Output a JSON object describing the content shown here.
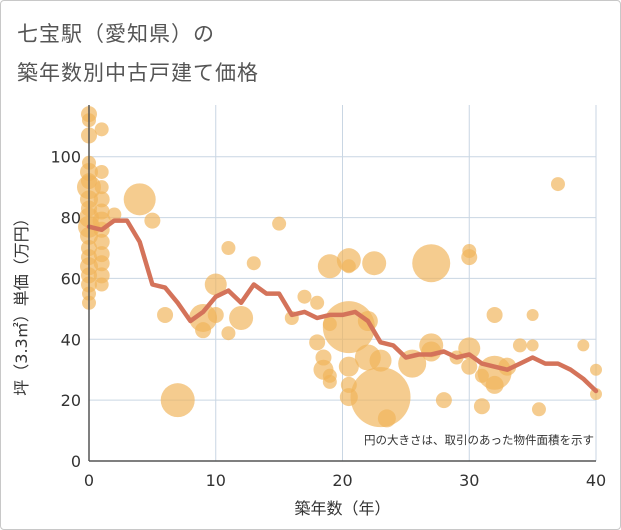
{
  "title_lines": [
    "七宝駅（愛知県）の",
    "築年数別中古戸建て価格"
  ],
  "note": "円の大きさは、取引のあった物件面積を示す",
  "colors": {
    "bubble": "#f0b45a",
    "line": "#d4735a",
    "grid": "#c9d6e3",
    "plot_bg": "#ffffff"
  },
  "chart_data": {
    "type": "scatter",
    "xlabel": "築年数（年）",
    "ylabel": "坪（3.3㎡）単価（万円）",
    "xlim": [
      0,
      40
    ],
    "ylim": [
      0,
      117
    ],
    "x_ticks": [
      0,
      10,
      20,
      30,
      40
    ],
    "y_ticks": [
      0,
      20,
      40,
      60,
      80,
      100
    ],
    "grid": true,
    "series": [
      {
        "kind": "bubbles",
        "points": [
          {
            "x": 0,
            "y": 114,
            "s": 8
          },
          {
            "x": 0,
            "y": 112,
            "s": 7
          },
          {
            "x": 0,
            "y": 107,
            "s": 8
          },
          {
            "x": 0,
            "y": 98,
            "s": 7
          },
          {
            "x": 0,
            "y": 95,
            "s": 9
          },
          {
            "x": 0,
            "y": 92,
            "s": 8
          },
          {
            "x": 0,
            "y": 90,
            "s": 12
          },
          {
            "x": 0,
            "y": 86,
            "s": 9
          },
          {
            "x": 0,
            "y": 83,
            "s": 8
          },
          {
            "x": 0,
            "y": 80,
            "s": 10
          },
          {
            "x": 0,
            "y": 77,
            "s": 11
          },
          {
            "x": 0,
            "y": 74,
            "s": 9
          },
          {
            "x": 0,
            "y": 70,
            "s": 8
          },
          {
            "x": 0,
            "y": 67,
            "s": 8
          },
          {
            "x": 0,
            "y": 64,
            "s": 9
          },
          {
            "x": 0,
            "y": 61,
            "s": 8
          },
          {
            "x": 0,
            "y": 58,
            "s": 8
          },
          {
            "x": 0,
            "y": 55,
            "s": 7
          },
          {
            "x": 0,
            "y": 52,
            "s": 7
          },
          {
            "x": 1,
            "y": 109,
            "s": 7
          },
          {
            "x": 1,
            "y": 95,
            "s": 7
          },
          {
            "x": 1,
            "y": 90,
            "s": 7
          },
          {
            "x": 1,
            "y": 86,
            "s": 8
          },
          {
            "x": 1,
            "y": 82,
            "s": 8
          },
          {
            "x": 1,
            "y": 79,
            "s": 9
          },
          {
            "x": 1,
            "y": 76,
            "s": 8
          },
          {
            "x": 1,
            "y": 72,
            "s": 8
          },
          {
            "x": 1,
            "y": 68,
            "s": 8
          },
          {
            "x": 1,
            "y": 65,
            "s": 8
          },
          {
            "x": 1,
            "y": 61,
            "s": 8
          },
          {
            "x": 1,
            "y": 58,
            "s": 7
          },
          {
            "x": 2,
            "y": 81,
            "s": 7
          },
          {
            "x": 4,
            "y": 86,
            "s": 16
          },
          {
            "x": 5,
            "y": 79,
            "s": 8
          },
          {
            "x": 6,
            "y": 48,
            "s": 8
          },
          {
            "x": 7,
            "y": 20,
            "s": 17
          },
          {
            "x": 9,
            "y": 47,
            "s": 14
          },
          {
            "x": 9,
            "y": 43,
            "s": 8
          },
          {
            "x": 10,
            "y": 58,
            "s": 11
          },
          {
            "x": 10,
            "y": 48,
            "s": 8
          },
          {
            "x": 11,
            "y": 70,
            "s": 7
          },
          {
            "x": 11,
            "y": 42,
            "s": 7
          },
          {
            "x": 12,
            "y": 47,
            "s": 12
          },
          {
            "x": 13,
            "y": 65,
            "s": 7
          },
          {
            "x": 15,
            "y": 78,
            "s": 7
          },
          {
            "x": 16,
            "y": 47,
            "s": 7
          },
          {
            "x": 17,
            "y": 54,
            "s": 7
          },
          {
            "x": 18,
            "y": 52,
            "s": 7
          },
          {
            "x": 18,
            "y": 39,
            "s": 8
          },
          {
            "x": 18.5,
            "y": 34,
            "s": 8
          },
          {
            "x": 18.5,
            "y": 30,
            "s": 10
          },
          {
            "x": 19,
            "y": 64,
            "s": 12
          },
          {
            "x": 19,
            "y": 45,
            "s": 7
          },
          {
            "x": 19,
            "y": 28,
            "s": 7
          },
          {
            "x": 19,
            "y": 26,
            "s": 7
          },
          {
            "x": 20.5,
            "y": 66,
            "s": 12
          },
          {
            "x": 20.5,
            "y": 64,
            "s": 7
          },
          {
            "x": 20.5,
            "y": 44,
            "s": 26
          },
          {
            "x": 20.5,
            "y": 31,
            "s": 10
          },
          {
            "x": 20.5,
            "y": 25,
            "s": 8
          },
          {
            "x": 20.5,
            "y": 21,
            "s": 9
          },
          {
            "x": 22,
            "y": 46,
            "s": 10
          },
          {
            "x": 22,
            "y": 34,
            "s": 13
          },
          {
            "x": 22.5,
            "y": 65,
            "s": 12
          },
          {
            "x": 23,
            "y": 21,
            "s": 30
          },
          {
            "x": 23,
            "y": 33,
            "s": 11
          },
          {
            "x": 23.5,
            "y": 14,
            "s": 9
          },
          {
            "x": 25.5,
            "y": 32,
            "s": 14
          },
          {
            "x": 27,
            "y": 65,
            "s": 19
          },
          {
            "x": 27,
            "y": 38,
            "s": 12
          },
          {
            "x": 27,
            "y": 36,
            "s": 10
          },
          {
            "x": 28,
            "y": 20,
            "s": 8
          },
          {
            "x": 29,
            "y": 34,
            "s": 7
          },
          {
            "x": 30,
            "y": 69,
            "s": 7
          },
          {
            "x": 30,
            "y": 67,
            "s": 8
          },
          {
            "x": 30,
            "y": 37,
            "s": 11
          },
          {
            "x": 30,
            "y": 31,
            "s": 8
          },
          {
            "x": 31,
            "y": 28,
            "s": 7
          },
          {
            "x": 31,
            "y": 18,
            "s": 8
          },
          {
            "x": 32,
            "y": 48,
            "s": 8
          },
          {
            "x": 32,
            "y": 29,
            "s": 17
          },
          {
            "x": 32,
            "y": 25,
            "s": 9
          },
          {
            "x": 33,
            "y": 31,
            "s": 9
          },
          {
            "x": 34,
            "y": 38,
            "s": 7
          },
          {
            "x": 35,
            "y": 48,
            "s": 6
          },
          {
            "x": 35,
            "y": 38,
            "s": 6
          },
          {
            "x": 35.5,
            "y": 17,
            "s": 7
          },
          {
            "x": 37,
            "y": 91,
            "s": 7
          },
          {
            "x": 39,
            "y": 38,
            "s": 6
          },
          {
            "x": 40,
            "y": 30,
            "s": 6
          },
          {
            "x": 40,
            "y": 22,
            "s": 6
          }
        ]
      },
      {
        "kind": "line",
        "x": [
          0,
          1,
          2,
          3,
          4,
          5,
          6,
          7,
          8,
          9,
          10,
          11,
          12,
          13,
          14,
          15,
          16,
          17,
          18,
          19,
          20,
          21,
          22,
          23,
          24,
          25,
          26,
          27,
          28,
          29,
          30,
          31,
          32,
          33,
          34,
          35,
          36,
          37,
          38,
          39,
          40
        ],
        "values": [
          77,
          76,
          79,
          79,
          72,
          58,
          57,
          52,
          46,
          49,
          54,
          56,
          52,
          58,
          55,
          55,
          48,
          49,
          47,
          48,
          48,
          49,
          46,
          39,
          38,
          34,
          35,
          35,
          36,
          34,
          35,
          32,
          31,
          30,
          32,
          34,
          32,
          32,
          30,
          27,
          23
        ]
      }
    ]
  }
}
